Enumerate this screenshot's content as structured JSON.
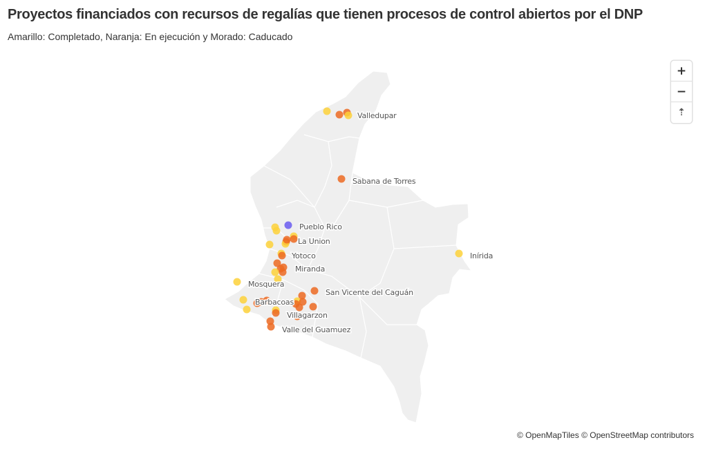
{
  "header": {
    "title": "Proyectos financiados con recursos de regalías que tienen procesos de control abiertos por el DNP",
    "subtitle": "Amarillo: Completado, Naranja: En ejecución y Morado: Caducado"
  },
  "legend_colors": {
    "Completado": "#fdd13a",
    "En ejecución": "#ec6a22",
    "Caducado": "#6a5cf0"
  },
  "controls": {
    "zoom_in": "+",
    "zoom_out": "−",
    "reset_north": "⇡"
  },
  "places": [
    {
      "name": "Valledupar",
      "status": "En ejecución"
    },
    {
      "name": "Sabana de Torres",
      "status": "En ejecución"
    },
    {
      "name": "Pueblo Rico",
      "status": "Caducado"
    },
    {
      "name": "La Union",
      "status": "En ejecución"
    },
    {
      "name": "Yotoco",
      "status": "En ejecución"
    },
    {
      "name": "Miranda",
      "status": "En ejecución"
    },
    {
      "name": "Inírida",
      "status": "Completado"
    },
    {
      "name": "Mosquera",
      "status": "Completado"
    },
    {
      "name": "San Vicente del Caguán",
      "status": "En ejecución"
    },
    {
      "name": "Barbacoas",
      "status": "En ejecución"
    },
    {
      "name": "Villagarzon",
      "status": "En ejecución"
    },
    {
      "name": "Valle del Guamuez",
      "status": "En ejecución"
    }
  ],
  "attribution": {
    "openmaptiles": "© OpenMapTiles",
    "openstreetmap": "© OpenStreetMap contributors"
  }
}
